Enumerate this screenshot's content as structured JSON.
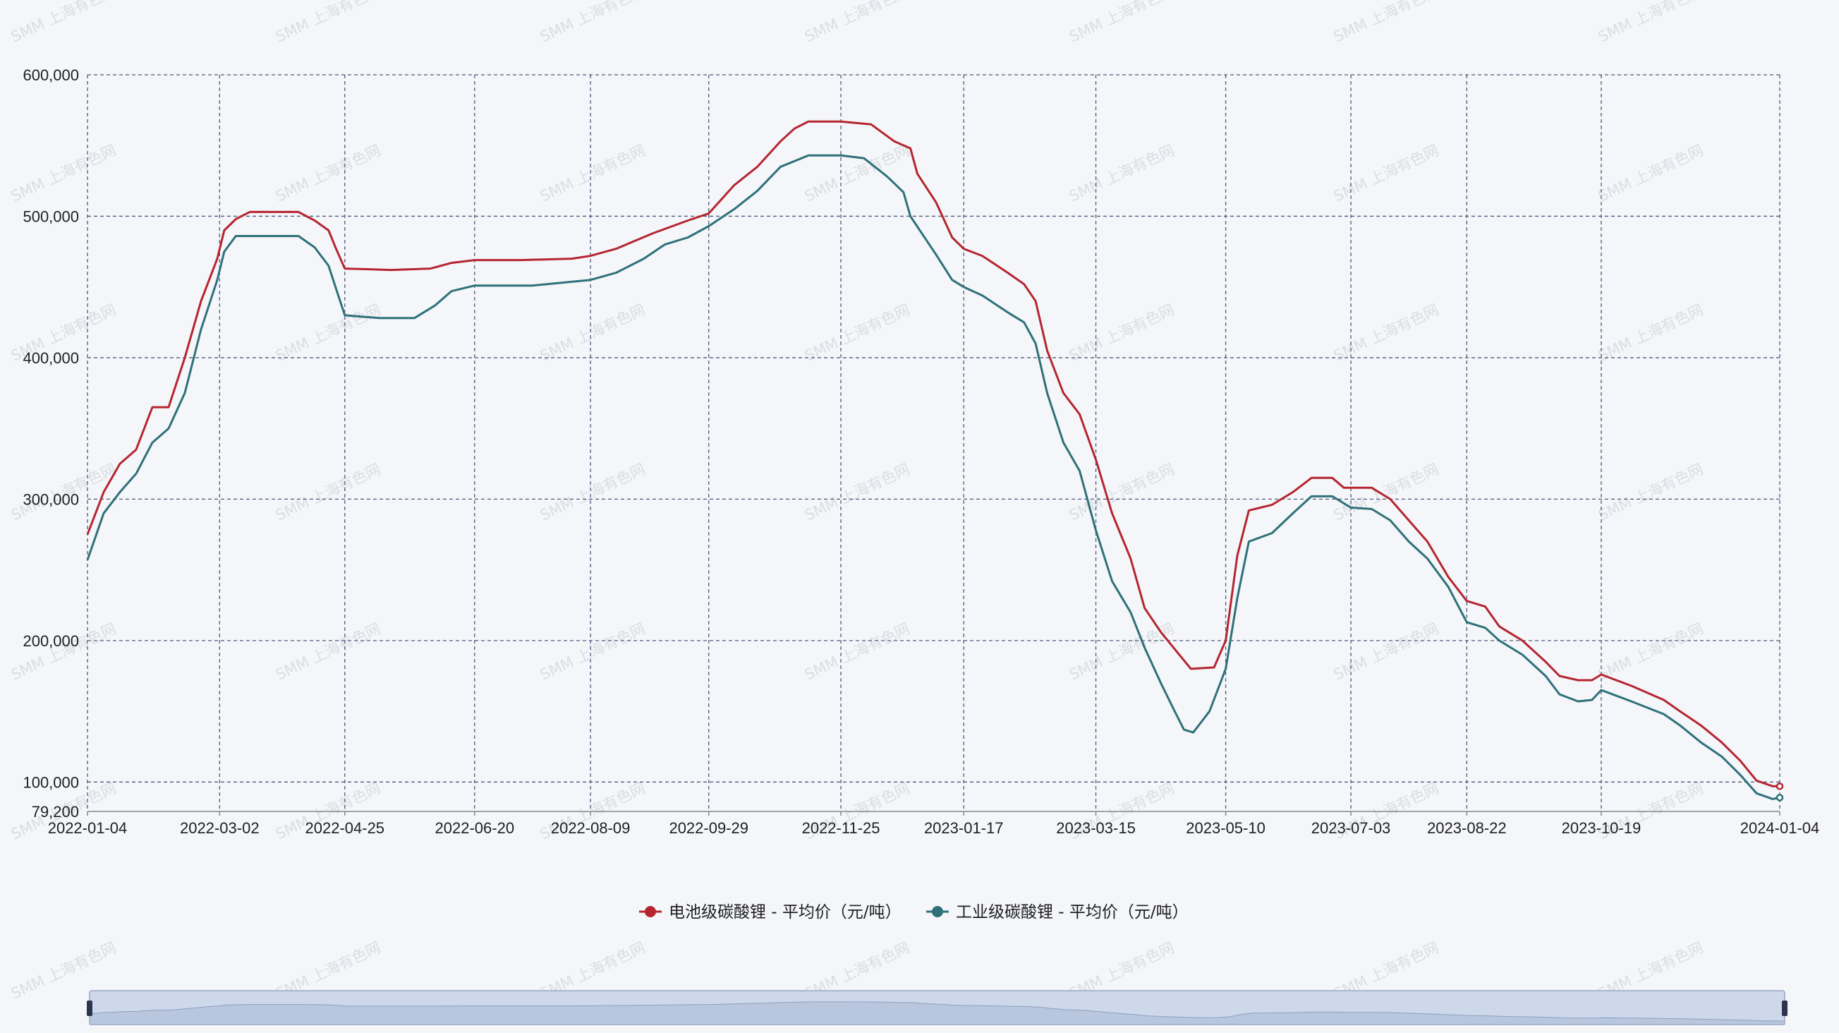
{
  "watermark": "SMM 上海有色网",
  "colors": {
    "series1": "#b52530",
    "series2": "#2e7179",
    "grid": "#4f5a7d",
    "axis": "#888888",
    "background": "#f4f6f9",
    "slider_fill": "#cdd8ea",
    "slider_border": "#9aa6c2",
    "slider_handle": "#2c3450"
  },
  "chart_data": {
    "type": "line",
    "title": "",
    "xlabel": "",
    "ylabel": "",
    "ylim": [
      79200,
      600000
    ],
    "y_ticks": [
      {
        "value": 600000,
        "label": "600,000"
      },
      {
        "value": 500000,
        "label": "500,000"
      },
      {
        "value": 400000,
        "label": "400,000"
      },
      {
        "value": 300000,
        "label": "300,000"
      },
      {
        "value": 200000,
        "label": "200,000"
      },
      {
        "value": 100000,
        "label": "100,000"
      },
      {
        "value": 79200,
        "label": "79,200"
      }
    ],
    "x_ticks": [
      "2022-01-04",
      "2022-03-02",
      "2022-04-25",
      "2022-06-20",
      "2022-08-09",
      "2022-09-29",
      "2022-11-25",
      "2023-01-17",
      "2023-03-15",
      "2023-05-10",
      "2023-07-03",
      "2023-08-22",
      "2023-10-19",
      "2024-01-04"
    ],
    "xlim": [
      "2022-01-04",
      "2024-01-04"
    ],
    "grid": true,
    "legend_position": "bottom-center",
    "series": [
      {
        "name": "电池级碳酸锂 - 平均价（元/吨）",
        "color": "#b52530",
        "points": [
          [
            "2022-01-04",
            275000
          ],
          [
            "2022-01-11",
            305000
          ],
          [
            "2022-01-18",
            325000
          ],
          [
            "2022-01-25",
            335000
          ],
          [
            "2022-02-01",
            365000
          ],
          [
            "2022-02-08",
            365000
          ],
          [
            "2022-02-15",
            400000
          ],
          [
            "2022-02-22",
            440000
          ],
          [
            "2022-03-01",
            470000
          ],
          [
            "2022-03-04",
            490000
          ],
          [
            "2022-03-09",
            498000
          ],
          [
            "2022-03-15",
            503000
          ],
          [
            "2022-04-05",
            503000
          ],
          [
            "2022-04-12",
            497000
          ],
          [
            "2022-04-18",
            490000
          ],
          [
            "2022-04-21",
            478000
          ],
          [
            "2022-04-25",
            463000
          ],
          [
            "2022-05-15",
            462000
          ],
          [
            "2022-06-01",
            463000
          ],
          [
            "2022-06-10",
            467000
          ],
          [
            "2022-06-20",
            469000
          ],
          [
            "2022-07-10",
            469000
          ],
          [
            "2022-08-01",
            470000
          ],
          [
            "2022-08-09",
            472000
          ],
          [
            "2022-08-20",
            477000
          ],
          [
            "2022-09-05",
            488000
          ],
          [
            "2022-09-20",
            497000
          ],
          [
            "2022-09-29",
            502000
          ],
          [
            "2022-10-10",
            522000
          ],
          [
            "2022-10-20",
            535000
          ],
          [
            "2022-10-30",
            553000
          ],
          [
            "2022-11-05",
            562000
          ],
          [
            "2022-11-11",
            567000
          ],
          [
            "2022-11-25",
            567000
          ],
          [
            "2022-12-08",
            565000
          ],
          [
            "2022-12-18",
            553000
          ],
          [
            "2022-12-25",
            548000
          ],
          [
            "2022-12-28",
            530000
          ],
          [
            "2023-01-05",
            510000
          ],
          [
            "2023-01-12",
            485000
          ],
          [
            "2023-01-17",
            477000
          ],
          [
            "2023-01-25",
            472000
          ],
          [
            "2023-02-05",
            460000
          ],
          [
            "2023-02-12",
            452000
          ],
          [
            "2023-02-17",
            440000
          ],
          [
            "2023-02-22",
            405000
          ],
          [
            "2023-03-01",
            375000
          ],
          [
            "2023-03-08",
            360000
          ],
          [
            "2023-03-15",
            328000
          ],
          [
            "2023-03-22",
            290000
          ],
          [
            "2023-03-30",
            258000
          ],
          [
            "2023-04-05",
            223000
          ],
          [
            "2023-04-12",
            206000
          ],
          [
            "2023-04-20",
            190000
          ],
          [
            "2023-04-25",
            180000
          ],
          [
            "2023-05-05",
            181000
          ],
          [
            "2023-05-10",
            200000
          ],
          [
            "2023-05-15",
            260000
          ],
          [
            "2023-05-20",
            292000
          ],
          [
            "2023-05-30",
            296000
          ],
          [
            "2023-06-08",
            305000
          ],
          [
            "2023-06-16",
            315000
          ],
          [
            "2023-06-25",
            315000
          ],
          [
            "2023-06-30",
            308000
          ],
          [
            "2023-07-12",
            308000
          ],
          [
            "2023-07-20",
            300000
          ],
          [
            "2023-07-28",
            285000
          ],
          [
            "2023-08-05",
            270000
          ],
          [
            "2023-08-14",
            245000
          ],
          [
            "2023-08-22",
            228000
          ],
          [
            "2023-08-30",
            224000
          ],
          [
            "2023-09-05",
            210000
          ],
          [
            "2023-09-15",
            200000
          ],
          [
            "2023-09-25",
            185000
          ],
          [
            "2023-10-01",
            175000
          ],
          [
            "2023-10-09",
            172000
          ],
          [
            "2023-10-15",
            172000
          ],
          [
            "2023-10-19",
            176000
          ],
          [
            "2023-11-01",
            168000
          ],
          [
            "2023-11-15",
            158000
          ],
          [
            "2023-11-22",
            150000
          ],
          [
            "2023-12-01",
            140000
          ],
          [
            "2023-12-10",
            128000
          ],
          [
            "2023-12-18",
            115000
          ],
          [
            "2023-12-25",
            101000
          ],
          [
            "2024-01-01",
            97000
          ],
          [
            "2024-01-04",
            97000
          ]
        ]
      },
      {
        "name": "工业级碳酸锂 - 平均价（元/吨）",
        "color": "#2e7179",
        "points": [
          [
            "2022-01-04",
            257000
          ],
          [
            "2022-01-11",
            290000
          ],
          [
            "2022-01-18",
            305000
          ],
          [
            "2022-01-25",
            318000
          ],
          [
            "2022-02-01",
            340000
          ],
          [
            "2022-02-08",
            350000
          ],
          [
            "2022-02-15",
            375000
          ],
          [
            "2022-02-22",
            420000
          ],
          [
            "2022-03-01",
            455000
          ],
          [
            "2022-03-04",
            475000
          ],
          [
            "2022-03-09",
            486000
          ],
          [
            "2022-04-05",
            486000
          ],
          [
            "2022-04-12",
            478000
          ],
          [
            "2022-04-18",
            465000
          ],
          [
            "2022-04-21",
            450000
          ],
          [
            "2022-04-25",
            430000
          ],
          [
            "2022-05-10",
            428000
          ],
          [
            "2022-05-25",
            428000
          ],
          [
            "2022-06-03",
            437000
          ],
          [
            "2022-06-10",
            447000
          ],
          [
            "2022-06-20",
            451000
          ],
          [
            "2022-07-15",
            451000
          ],
          [
            "2022-08-09",
            455000
          ],
          [
            "2022-08-20",
            460000
          ],
          [
            "2022-09-01",
            470000
          ],
          [
            "2022-09-10",
            480000
          ],
          [
            "2022-09-20",
            485000
          ],
          [
            "2022-09-29",
            493000
          ],
          [
            "2022-10-10",
            505000
          ],
          [
            "2022-10-20",
            518000
          ],
          [
            "2022-10-30",
            535000
          ],
          [
            "2022-11-11",
            543000
          ],
          [
            "2022-11-25",
            543000
          ],
          [
            "2022-12-05",
            541000
          ],
          [
            "2022-12-15",
            528000
          ],
          [
            "2022-12-22",
            517000
          ],
          [
            "2022-12-25",
            500000
          ],
          [
            "2023-01-05",
            473000
          ],
          [
            "2023-01-12",
            455000
          ],
          [
            "2023-01-17",
            450000
          ],
          [
            "2023-01-25",
            444000
          ],
          [
            "2023-02-05",
            432000
          ],
          [
            "2023-02-12",
            425000
          ],
          [
            "2023-02-17",
            410000
          ],
          [
            "2023-02-22",
            375000
          ],
          [
            "2023-03-01",
            340000
          ],
          [
            "2023-03-08",
            320000
          ],
          [
            "2023-03-15",
            278000
          ],
          [
            "2023-03-22",
            242000
          ],
          [
            "2023-03-30",
            220000
          ],
          [
            "2023-04-05",
            195000
          ],
          [
            "2023-04-12",
            170000
          ],
          [
            "2023-04-18",
            150000
          ],
          [
            "2023-04-22",
            137000
          ],
          [
            "2023-04-26",
            135000
          ],
          [
            "2023-05-03",
            150000
          ],
          [
            "2023-05-10",
            180000
          ],
          [
            "2023-05-15",
            230000
          ],
          [
            "2023-05-20",
            270000
          ],
          [
            "2023-05-30",
            276000
          ],
          [
            "2023-06-08",
            290000
          ],
          [
            "2023-06-16",
            302000
          ],
          [
            "2023-06-25",
            302000
          ],
          [
            "2023-07-03",
            294000
          ],
          [
            "2023-07-12",
            293000
          ],
          [
            "2023-07-20",
            285000
          ],
          [
            "2023-07-28",
            270000
          ],
          [
            "2023-08-05",
            258000
          ],
          [
            "2023-08-14",
            238000
          ],
          [
            "2023-08-22",
            213000
          ],
          [
            "2023-08-30",
            209000
          ],
          [
            "2023-09-05",
            200000
          ],
          [
            "2023-09-15",
            190000
          ],
          [
            "2023-09-25",
            175000
          ],
          [
            "2023-10-01",
            162000
          ],
          [
            "2023-10-09",
            157000
          ],
          [
            "2023-10-15",
            158000
          ],
          [
            "2023-10-19",
            165000
          ],
          [
            "2023-11-01",
            157000
          ],
          [
            "2023-11-15",
            148000
          ],
          [
            "2023-11-22",
            140000
          ],
          [
            "2023-12-01",
            128000
          ],
          [
            "2023-12-10",
            118000
          ],
          [
            "2023-12-18",
            105000
          ],
          [
            "2023-12-25",
            92000
          ],
          [
            "2024-01-01",
            88000
          ],
          [
            "2024-01-04",
            89000
          ]
        ]
      }
    ]
  }
}
